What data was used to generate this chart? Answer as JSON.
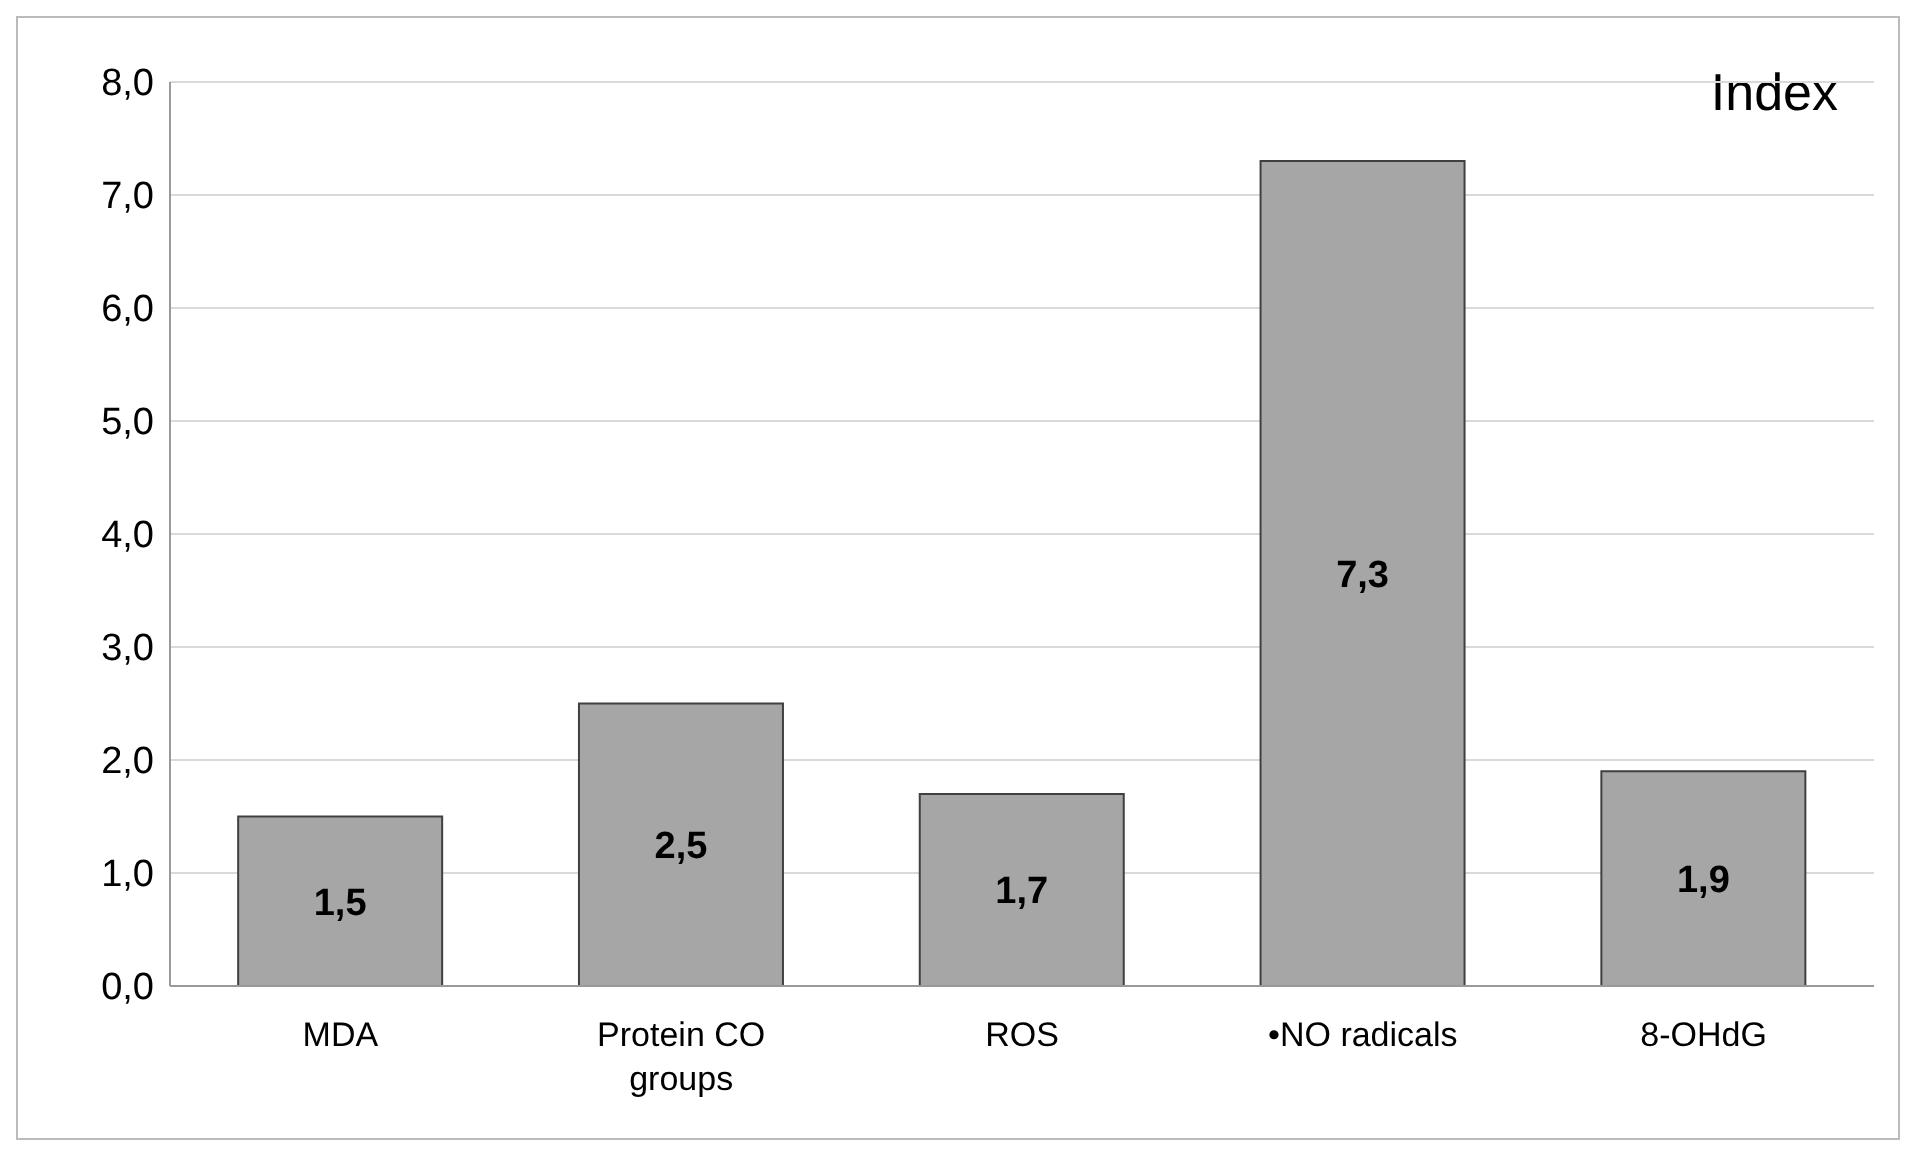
{
  "chart_data": {
    "type": "bar",
    "categories": [
      "MDA",
      "Protein CO groups",
      "ROS",
      "•NO radicals",
      "8-OHdG"
    ],
    "values": [
      1.5,
      2.5,
      1.7,
      7.3,
      1.9
    ],
    "value_labels": [
      "1,5",
      "2,5",
      "1,7",
      "7,3",
      "1,9"
    ],
    "color": "#a6a6a6",
    "ylim": [
      0,
      8
    ],
    "yticks": [
      {
        "value": 0,
        "label": "0,0"
      },
      {
        "value": 1,
        "label": "1,0"
      },
      {
        "value": 2,
        "label": "2,0"
      },
      {
        "value": 3,
        "label": "3,0"
      },
      {
        "value": 4,
        "label": "4,0"
      },
      {
        "value": 5,
        "label": "5,0"
      },
      {
        "value": 6,
        "label": "6,0"
      },
      {
        "value": 7,
        "label": "7,0"
      },
      {
        "value": 8,
        "label": "8,0"
      }
    ],
    "grid": "y",
    "annotations": [
      "Index"
    ]
  }
}
